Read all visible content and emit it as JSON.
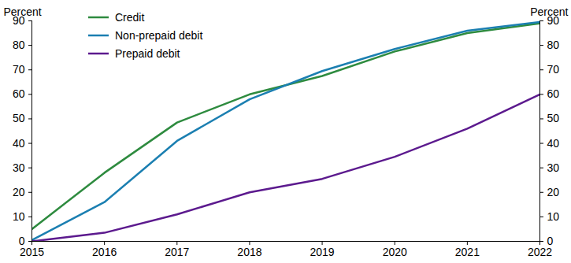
{
  "chart_data": {
    "type": "line",
    "y_label": "Percent",
    "x": [
      2015,
      2016,
      2017,
      2018,
      2019,
      2020,
      2021,
      2022
    ],
    "xlim": [
      2015,
      2022
    ],
    "xticks": [
      2015,
      2016,
      2017,
      2018,
      2019,
      2020,
      2021,
      2022
    ],
    "ylim": [
      0,
      90
    ],
    "yticks": [
      0,
      10,
      20,
      30,
      40,
      50,
      60,
      70,
      80,
      90
    ],
    "legend": "top-left",
    "series": [
      {
        "name": "Credit",
        "color": "#2e8b3f",
        "values": [
          5,
          28,
          48.5,
          60,
          67.5,
          77.5,
          85,
          89
        ]
      },
      {
        "name": "Non-prepaid debit",
        "color": "#1b7fb1",
        "values": [
          0.5,
          16,
          41,
          58,
          69.5,
          78.5,
          86,
          89.5
        ]
      },
      {
        "name": "Prepaid debit",
        "color": "#5c1a8e",
        "values": [
          0,
          3.5,
          11,
          20,
          25.5,
          34.5,
          46,
          60
        ]
      }
    ]
  }
}
